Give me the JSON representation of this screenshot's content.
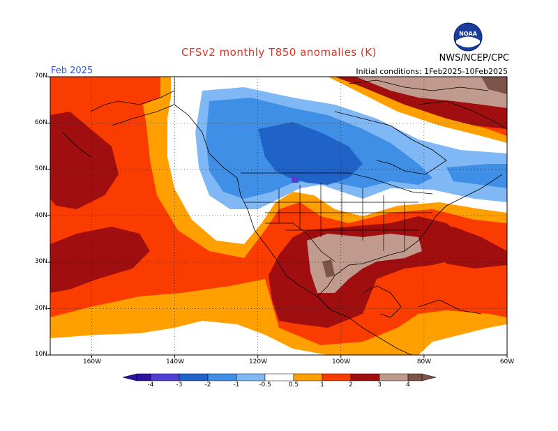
{
  "title": "CFSv2 monthly T850 anomalies (K)",
  "period": "Feb 2025",
  "initial_conditions": "Initial conditions: 1Feb2025-10Feb2025",
  "agency": "NWS/NCEP/CPC",
  "logo_text": "NOAA",
  "colors": {
    "n4": "#2e13a0",
    "n3": "#4f3fd3",
    "n2": "#1f63c9",
    "n1": "#3f8fe6",
    "n05": "#80b8f5",
    "p05": "#ffa000",
    "p1": "#fa3c00",
    "p2": "#d01e00",
    "p3": "#a00e10",
    "p4": "#c09a8c",
    "p5": "#7b5348"
  },
  "map": {
    "lat_range": [
      10,
      70
    ],
    "lon_range": [
      -170,
      -60
    ],
    "lat_labels": [
      "70N",
      "60N",
      "50N",
      "40N",
      "30N",
      "20N",
      "10N"
    ],
    "lon_labels": [
      "160W",
      "140W",
      "120W",
      "100W",
      "80W",
      "60W"
    ]
  },
  "colorbar": {
    "labels": [
      "-4",
      "-3",
      "-2",
      "-1",
      "-0.5",
      "0.5",
      "1",
      "2",
      "3",
      "4"
    ]
  }
}
